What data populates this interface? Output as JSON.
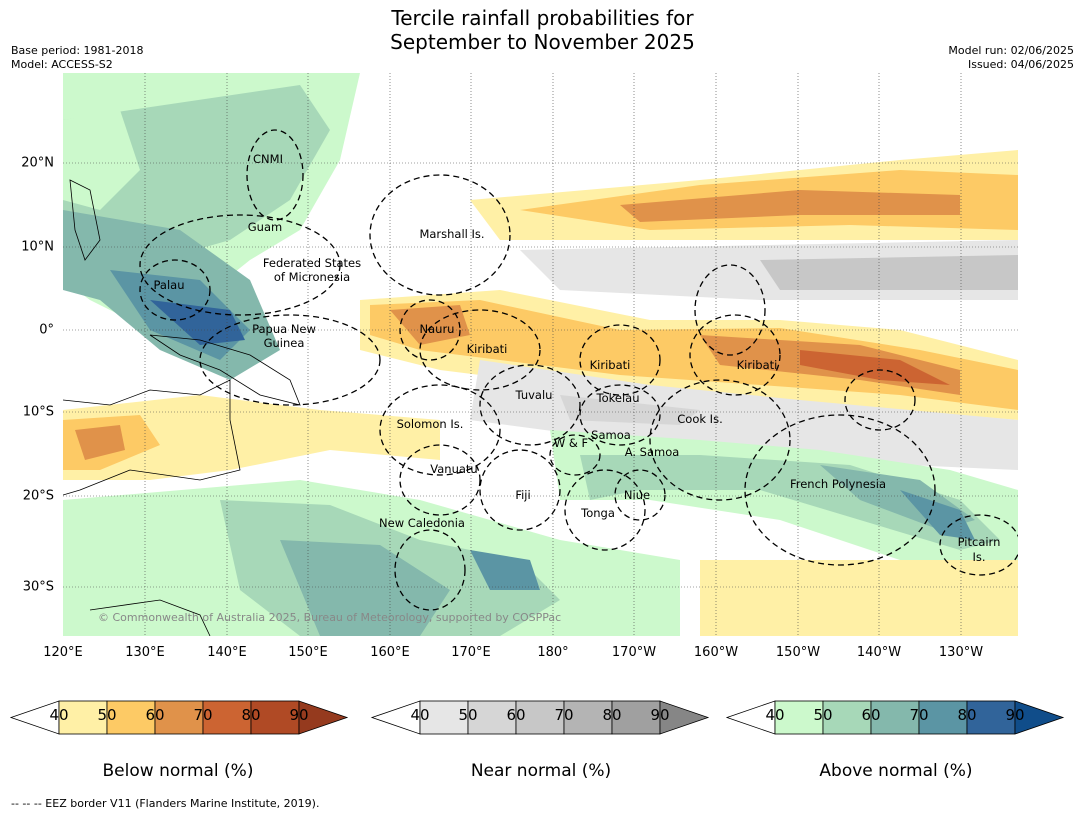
{
  "title_line1": "Tercile rainfall probabilities for",
  "title_line2": "September to November 2025",
  "meta": {
    "base_period": "Base period: 1981-2018",
    "model": "Model: ACCESS-S2",
    "model_run": "Model run: 02/06/2025",
    "issued": "Issued: 04/06/2025"
  },
  "map": {
    "lon_labels": [
      "120°E",
      "130°E",
      "140°E",
      "150°E",
      "160°E",
      "170°E",
      "180°",
      "170°W",
      "160°W",
      "150°W",
      "140°W",
      "130°W"
    ],
    "lat_labels": [
      "20°N",
      "10°N",
      "0°",
      "10°S",
      "20°S",
      "30°S"
    ],
    "regions": {
      "cnmi": "CNMI",
      "guam": "Guam",
      "fsm_1": "Federated States",
      "fsm_2": "of Micronesia",
      "palau": "Palau",
      "marshall": "Marshall Is.",
      "png_1": "Papua New",
      "png_2": "Guinea",
      "nauru": "Nauru",
      "kiribati_w": "Kiribati",
      "kiribati_c": "Kiribati",
      "kiribati_e": "Kiribati",
      "tuvalu": "Tuvalu",
      "tokelau": "Tokelau",
      "cook": "Cook Is.",
      "solomon": "Solomon Is.",
      "wf": "W & F",
      "samoa": "Samoa",
      "asamoa": "A. Samoa",
      "vanuatu": "Vanuatu",
      "fiji": "Fiji",
      "niue": "Niue",
      "tonga": "Tonga",
      "french_poly": "French Polynesia",
      "pitcairn_1": "Pitcairn",
      "pitcairn_2": "Is.",
      "new_caledonia": "New Caledonia"
    },
    "copyright": "© Commonwealth of Australia 2025, Bureau of Meteorology, supported by COSPPac"
  },
  "colorbars": [
    {
      "title": "Below normal (%)",
      "ticks": [
        "40",
        "50",
        "60",
        "70",
        "80",
        "90"
      ],
      "colors": [
        "#fff0a6",
        "#fdca65",
        "#e0924a",
        "#cc6432",
        "#b04a25",
        "#953a1e"
      ]
    },
    {
      "title": "Near normal (%)",
      "ticks": [
        "40",
        "50",
        "60",
        "70",
        "80",
        "90"
      ],
      "colors": [
        "#e6e6e6",
        "#d6d6d6",
        "#c7c7c7",
        "#b4b4b4",
        "#a0a0a0",
        "#868686"
      ]
    },
    {
      "title": "Above normal (%)",
      "ticks": [
        "40",
        "50",
        "60",
        "70",
        "80",
        "90"
      ],
      "colors": [
        "#ccf9cc",
        "#a7d8b8",
        "#84b8ac",
        "#5b95a4",
        "#31649a",
        "#104d8a"
      ]
    }
  ],
  "footnote": "-- -- -- EEZ border V11 (Flanders Marine Institute, 2019)."
}
